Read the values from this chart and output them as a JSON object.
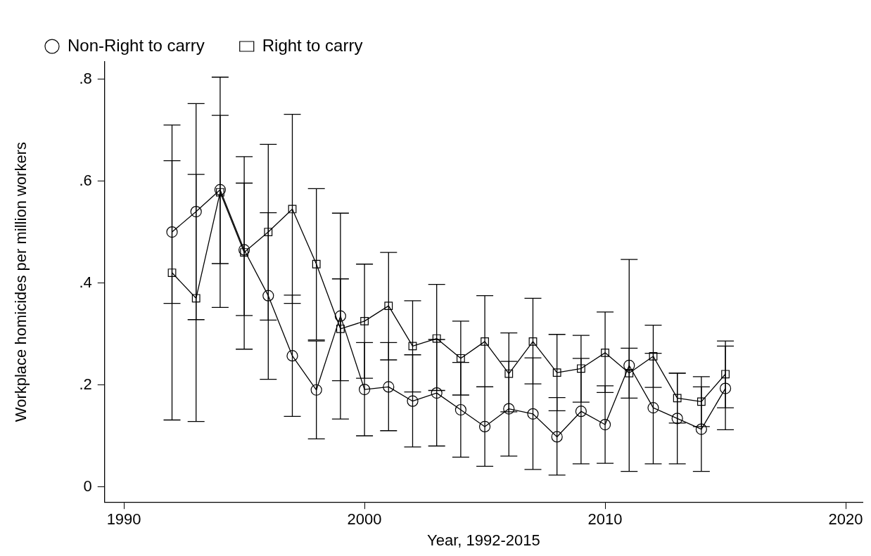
{
  "chart_data": {
    "type": "line",
    "xlabel": "Year, 1992-2015",
    "ylabel": "Workplace homicides per million workers",
    "x": [
      1992,
      1993,
      1994,
      1995,
      1996,
      1997,
      1998,
      1999,
      2000,
      2001,
      2002,
      2003,
      2004,
      2005,
      2006,
      2007,
      2008,
      2009,
      2010,
      2011,
      2012,
      2013,
      2014,
      2015
    ],
    "series": [
      {
        "name": "Non-Right to carry",
        "color": "#000000",
        "marker": "circle",
        "values": [
          0.5,
          0.54,
          0.583,
          0.465,
          0.375,
          0.257,
          0.19,
          0.335,
          0.191,
          0.196,
          0.168,
          0.184,
          0.151,
          0.118,
          0.153,
          0.143,
          0.098,
          0.148,
          0.122,
          0.238,
          0.155,
          0.134,
          0.113,
          0.193
        ],
        "errors": [
          [
            0.36,
            0.64
          ],
          [
            0.328,
            0.752
          ],
          [
            0.438,
            0.729
          ],
          [
            0.336,
            0.596
          ],
          [
            0.211,
            0.538
          ],
          [
            0.138,
            0.376
          ],
          [
            0.094,
            0.286
          ],
          [
            0.133,
            0.537
          ],
          [
            0.1,
            0.283
          ],
          [
            0.11,
            0.283
          ],
          [
            0.078,
            0.259
          ],
          [
            0.08,
            0.289
          ],
          [
            0.058,
            0.244
          ],
          [
            0.04,
            0.196
          ],
          [
            0.06,
            0.246
          ],
          [
            0.034,
            0.253
          ],
          [
            0.023,
            0.175
          ],
          [
            0.045,
            0.252
          ],
          [
            0.046,
            0.198
          ],
          [
            0.03,
            0.446
          ],
          [
            0.045,
            0.262
          ],
          [
            0.045,
            0.223
          ],
          [
            0.03,
            0.196
          ],
          [
            0.112,
            0.276
          ]
        ]
      },
      {
        "name": "Right to carry",
        "color": "#000000",
        "marker": "square",
        "values": [
          0.42,
          0.37,
          0.578,
          0.46,
          0.5,
          0.545,
          0.437,
          0.31,
          0.325,
          0.355,
          0.276,
          0.291,
          0.252,
          0.285,
          0.222,
          0.285,
          0.224,
          0.232,
          0.263,
          0.223,
          0.256,
          0.174,
          0.167,
          0.221
        ],
        "errors": [
          [
            0.131,
            0.71
          ],
          [
            0.128,
            0.613
          ],
          [
            0.352,
            0.804
          ],
          [
            0.27,
            0.648
          ],
          [
            0.327,
            0.672
          ],
          [
            0.36,
            0.731
          ],
          [
            0.288,
            0.585
          ],
          [
            0.208,
            0.408
          ],
          [
            0.213,
            0.437
          ],
          [
            0.249,
            0.46
          ],
          [
            0.186,
            0.365
          ],
          [
            0.189,
            0.397
          ],
          [
            0.18,
            0.325
          ],
          [
            0.196,
            0.375
          ],
          [
            0.147,
            0.302
          ],
          [
            0.202,
            0.37
          ],
          [
            0.149,
            0.299
          ],
          [
            0.166,
            0.297
          ],
          [
            0.185,
            0.343
          ],
          [
            0.174,
            0.272
          ],
          [
            0.195,
            0.317
          ],
          [
            0.125,
            0.223
          ],
          [
            0.118,
            0.216
          ],
          [
            0.155,
            0.286
          ]
        ]
      }
    ],
    "xlim": [
      1989.2,
      2020.7
    ],
    "xticks": [
      1990,
      2000,
      2010,
      2020
    ],
    "ylim": [
      -0.03,
      0.834
    ],
    "yticks": [
      0,
      {
        "value": 0.2,
        "label": ".2"
      },
      {
        "value": 0.4,
        "label": ".4"
      },
      {
        "value": 0.6,
        "label": ".6"
      },
      {
        "value": 0.8,
        "label": ".8"
      }
    ],
    "grid": false,
    "legend": "top",
    "line_style": "solid"
  }
}
